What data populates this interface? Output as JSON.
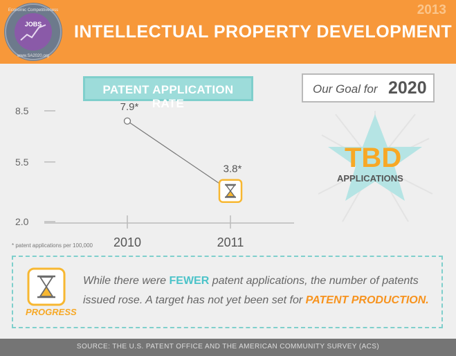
{
  "header": {
    "year": "2013",
    "title": "INTELLECTUAL PROPERTY DEVELOPMENT",
    "logo": {
      "top_text": "Economic Competitiveness",
      "center_text": "JOBS",
      "bottom_text": "www.SA2020.org"
    }
  },
  "chart_title": "PATENT APPLICATION RATE",
  "goal": {
    "label": "Our Goal for",
    "year": "2020",
    "value": "TBD",
    "unit": "APPLICATIONS"
  },
  "footnote": "* patent applications per 100,000",
  "progress": {
    "label": "PROGRESS",
    "message_before": "While there were ",
    "highlight_fewer": "FEWER",
    "message_middle": " patent applications, the number of patents issued rose. A target has not yet been set for ",
    "highlight_production": "PATENT PRODUCTION."
  },
  "footer": "SOURCE: THE U.S. PATENT OFFICE AND THE AMERICAN COMMUNITY SURVEY (ACS)",
  "colors": {
    "header_orange": "#f7983a",
    "teal": "#7fcfcc",
    "gold": "#f7a825",
    "gray_text": "#666666"
  },
  "chart_data": {
    "type": "line",
    "title": "PATENT APPLICATION RATE",
    "x": [
      "2010",
      "2011"
    ],
    "series": [
      {
        "values": [
          7.9,
          3.8
        ],
        "labels": [
          "7.9*",
          "3.8*"
        ]
      }
    ],
    "yticks": [
      "8.5",
      "5.5",
      "2.0"
    ],
    "ytick_values": [
      8.5,
      5.5,
      2.0
    ],
    "ylim": [
      2.0,
      8.5
    ],
    "grid": false,
    "last_point_marker": "hourglass-icon"
  }
}
